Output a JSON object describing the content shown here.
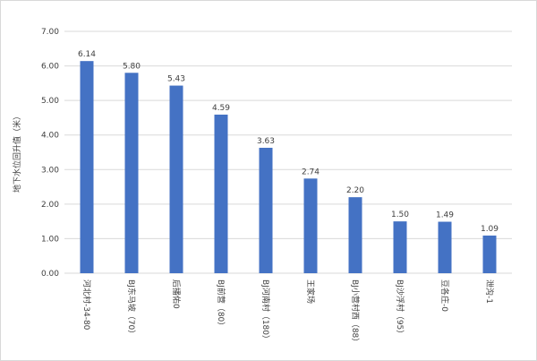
{
  "chart_data": {
    "type": "bar",
    "ylabel": "地下水位回升值（米）",
    "xlabel": "",
    "ylim": [
      0,
      7
    ],
    "ytick_step": 1,
    "ytick_labels": [
      "0.00",
      "1.00",
      "2.00",
      "3.00",
      "4.00",
      "5.00",
      "6.00",
      "7.00"
    ],
    "grid": true,
    "legend": "none",
    "categories": [
      "河北村-34-80",
      "BJ东马坡（70）",
      "后播佑0",
      "BJ前营（80）",
      "BJ河南村（180）",
      "王家场",
      "BJ小营村西（88）",
      "BJ沙浮村（95）",
      "豆各庄-0",
      "泄沟-1"
    ],
    "values": [
      6.14,
      5.8,
      5.43,
      4.59,
      3.63,
      2.74,
      2.2,
      1.5,
      1.49,
      1.09
    ],
    "value_labels": [
      "6.14",
      "5.80",
      "5.43",
      "4.59",
      "3.63",
      "2.74",
      "2.20",
      "1.50",
      "1.49",
      "1.09"
    ],
    "bar_color": "#4472c4",
    "grid_color": "#d9d9d9"
  }
}
